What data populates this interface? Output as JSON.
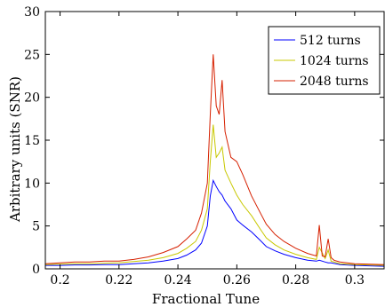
{
  "chart_data": {
    "type": "line",
    "title": "",
    "xlabel": "Fractional Tune",
    "ylabel": "Arbitrary units (SNR)",
    "xlim": [
      0.195,
      0.31
    ],
    "ylim": [
      0,
      30
    ],
    "xticks": [
      0.2,
      0.22,
      0.24,
      0.26,
      0.28,
      0.3
    ],
    "xtick_labels": [
      "0.2",
      "0.22",
      "0.24",
      "0.26",
      "0.28",
      "0.3"
    ],
    "yticks": [
      0,
      5,
      10,
      15,
      20,
      25,
      30
    ],
    "ytick_labels": [
      "0",
      "5",
      "10",
      "15",
      "20",
      "25",
      "30"
    ],
    "grid": false,
    "legend_position": "top-right",
    "series": [
      {
        "name": "512 turns",
        "color": "#0000ff",
        "x": [
          0.195,
          0.2,
          0.205,
          0.21,
          0.215,
          0.22,
          0.225,
          0.23,
          0.235,
          0.24,
          0.243,
          0.246,
          0.248,
          0.25,
          0.251,
          0.252,
          0.253,
          0.254,
          0.255,
          0.256,
          0.258,
          0.26,
          0.262,
          0.265,
          0.268,
          0.27,
          0.273,
          0.276,
          0.28,
          0.284,
          0.287,
          0.288,
          0.29,
          0.291,
          0.292,
          0.295,
          0.3,
          0.305,
          0.31
        ],
        "y": [
          0.4,
          0.4,
          0.45,
          0.45,
          0.5,
          0.5,
          0.6,
          0.7,
          0.9,
          1.2,
          1.6,
          2.2,
          3.0,
          5.0,
          8.5,
          10.3,
          9.6,
          9.0,
          8.6,
          7.9,
          7.0,
          5.7,
          5.1,
          4.3,
          3.3,
          2.6,
          2.1,
          1.7,
          1.3,
          1.0,
          0.9,
          1.0,
          0.8,
          0.7,
          0.7,
          0.5,
          0.4,
          0.35,
          0.3
        ]
      },
      {
        "name": "1024 turns",
        "color": "#c8c800",
        "x": [
          0.195,
          0.2,
          0.205,
          0.21,
          0.215,
          0.22,
          0.225,
          0.23,
          0.235,
          0.24,
          0.243,
          0.246,
          0.248,
          0.25,
          0.251,
          0.252,
          0.253,
          0.254,
          0.255,
          0.256,
          0.258,
          0.26,
          0.262,
          0.265,
          0.268,
          0.27,
          0.273,
          0.276,
          0.28,
          0.284,
          0.287,
          0.288,
          0.29,
          0.291,
          0.292,
          0.295,
          0.3,
          0.305,
          0.31
        ],
        "y": [
          0.5,
          0.55,
          0.6,
          0.6,
          0.65,
          0.7,
          0.85,
          1.0,
          1.3,
          1.8,
          2.4,
          3.2,
          4.5,
          7.0,
          12.5,
          16.8,
          13.0,
          13.5,
          14.2,
          11.5,
          10.0,
          8.6,
          7.5,
          6.2,
          4.6,
          3.6,
          2.8,
          2.2,
          1.7,
          1.3,
          1.1,
          2.5,
          1.2,
          2.2,
          0.9,
          0.6,
          0.5,
          0.45,
          0.4
        ]
      },
      {
        "name": "2048 turns",
        "color": "#d62000",
        "x": [
          0.195,
          0.2,
          0.205,
          0.21,
          0.215,
          0.22,
          0.225,
          0.23,
          0.235,
          0.24,
          0.243,
          0.246,
          0.248,
          0.25,
          0.251,
          0.252,
          0.253,
          0.254,
          0.255,
          0.256,
          0.258,
          0.26,
          0.262,
          0.265,
          0.268,
          0.27,
          0.273,
          0.276,
          0.28,
          0.284,
          0.287,
          0.288,
          0.289,
          0.29,
          0.291,
          0.292,
          0.293,
          0.295,
          0.3,
          0.305,
          0.31
        ],
        "y": [
          0.6,
          0.7,
          0.8,
          0.8,
          0.9,
          0.9,
          1.1,
          1.4,
          1.9,
          2.6,
          3.5,
          4.5,
          6.5,
          10.0,
          18.0,
          25.0,
          19.0,
          18.0,
          22.0,
          16.0,
          13.0,
          12.5,
          11.0,
          8.5,
          6.5,
          5.2,
          4.0,
          3.2,
          2.4,
          1.8,
          1.5,
          5.1,
          1.5,
          1.4,
          3.5,
          1.3,
          1.0,
          0.8,
          0.6,
          0.55,
          0.5
        ]
      }
    ]
  }
}
